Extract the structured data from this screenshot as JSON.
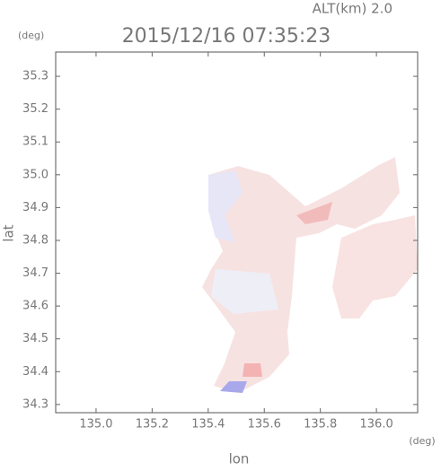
{
  "chart_data": {
    "type": "map",
    "title": "2015/12/16 07:35:23",
    "altitude_label": "ALT(km) 2.0",
    "xlabel": "lon",
    "ylabel": "lat",
    "xunit": "(deg)",
    "yunit": "(deg)",
    "xlim": [
      134.856,
      136.147
    ],
    "ylim": [
      34.275,
      35.374
    ],
    "xticks": [
      {
        "value": 135.0,
        "label": "135.0"
      },
      135.2,
      135.4,
      135.6,
      135.8,
      {
        "value": 136.0,
        "label": "136.0"
      }
    ],
    "yticks": [
      35.3,
      35.2,
      35.1,
      {
        "value": 35.0,
        "label": "35.0"
      },
      34.9,
      34.8,
      34.7,
      34.6,
      34.5,
      34.4,
      34.3
    ]
  }
}
